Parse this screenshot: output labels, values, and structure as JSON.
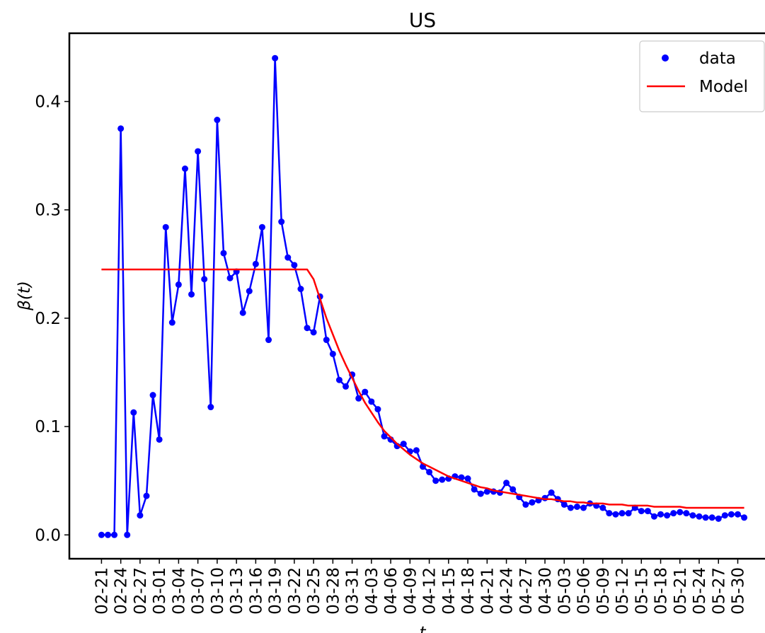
{
  "chart_data": {
    "type": "line",
    "title": "US",
    "xlabel": "t",
    "ylabel": "β(t)",
    "categories": [
      "02-21",
      null,
      null,
      "02-24",
      null,
      null,
      "02-27",
      null,
      null,
      "03-01",
      null,
      null,
      "03-04",
      null,
      null,
      "03-07",
      null,
      null,
      "03-10",
      null,
      null,
      "03-13",
      null,
      null,
      "03-16",
      null,
      null,
      "03-19",
      null,
      null,
      "03-22",
      null,
      null,
      "03-25",
      null,
      null,
      "03-28",
      null,
      null,
      "03-31",
      null,
      null,
      "04-03",
      null,
      null,
      "04-06",
      null,
      null,
      "04-09",
      null,
      null,
      "04-12",
      null,
      null,
      "04-15",
      null,
      null,
      "04-18",
      null,
      null,
      "04-21",
      null,
      null,
      "04-24",
      null,
      null,
      "04-27",
      null,
      null,
      "04-30",
      null,
      null,
      "05-03",
      null,
      null,
      "05-06",
      null,
      null,
      "05-09",
      null,
      null,
      "05-12",
      null,
      null,
      "05-15",
      null,
      null,
      "05-18",
      null,
      null,
      "05-21",
      null,
      null,
      "05-24",
      null,
      null,
      "05-27",
      null,
      null,
      "05-30",
      null
    ],
    "series": [
      {
        "name": "data",
        "color": "#0000ff",
        "marker": true,
        "values": [
          0,
          0,
          0,
          0.375,
          0,
          0.113,
          0.018,
          0.036,
          0.129,
          0.088,
          0.284,
          0.196,
          0.231,
          0.338,
          0.222,
          0.354,
          0.236,
          0.118,
          0.383,
          0.26,
          0.237,
          0.243,
          0.205,
          0.225,
          0.25,
          0.284,
          0.18,
          0.44,
          0.289,
          0.256,
          0.249,
          0.227,
          0.191,
          0.187,
          0.22,
          0.18,
          0.167,
          0.143,
          0.137,
          0.148,
          0.126,
          0.132,
          0.123,
          0.116,
          0.091,
          0.088,
          0.082,
          0.084,
          0.077,
          0.078,
          0.063,
          0.058,
          0.05,
          0.051,
          0.052,
          0.054,
          0.053,
          0.052,
          0.042,
          0.038,
          0.04,
          0.04,
          0.039,
          0.048,
          0.042,
          0.035,
          0.028,
          0.03,
          0.032,
          0.034,
          0.039,
          0.033,
          0.028,
          0.025,
          0.026,
          0.025,
          0.029,
          0.027,
          0.025,
          0.02,
          0.019,
          0.02,
          0.02,
          0.025,
          0.022,
          0.022,
          0.017,
          0.019,
          0.018,
          0.02,
          0.021,
          0.02,
          0.018,
          0.017,
          0.016,
          0.016,
          0.015,
          0.018,
          0.019,
          0.019,
          0.016
        ]
      },
      {
        "name": "Model",
        "color": "#ff0000",
        "marker": false,
        "values": [
          0.245,
          0.245,
          0.245,
          0.245,
          0.245,
          0.245,
          0.245,
          0.245,
          0.245,
          0.245,
          0.245,
          0.245,
          0.245,
          0.245,
          0.245,
          0.245,
          0.245,
          0.245,
          0.245,
          0.245,
          0.245,
          0.245,
          0.245,
          0.245,
          0.245,
          0.245,
          0.245,
          0.245,
          0.245,
          0.245,
          0.245,
          0.245,
          0.245,
          0.236,
          0.218,
          0.2,
          0.185,
          0.17,
          0.157,
          0.145,
          0.133,
          0.122,
          0.113,
          0.104,
          0.096,
          0.09,
          0.084,
          0.079,
          0.074,
          0.07,
          0.066,
          0.063,
          0.06,
          0.057,
          0.054,
          0.052,
          0.05,
          0.048,
          0.046,
          0.044,
          0.043,
          0.041,
          0.04,
          0.039,
          0.038,
          0.037,
          0.036,
          0.035,
          0.034,
          0.033,
          0.033,
          0.032,
          0.031,
          0.031,
          0.03,
          0.03,
          0.029,
          0.029,
          0.029,
          0.028,
          0.028,
          0.028,
          0.027,
          0.027,
          0.027,
          0.027,
          0.026,
          0.026,
          0.026,
          0.026,
          0.026,
          0.025,
          0.025,
          0.025,
          0.025,
          0.025,
          0.025,
          0.025,
          0.025,
          0.025,
          0.025
        ]
      }
    ],
    "ylim": [
      -0.022,
      0.463
    ],
    "yticks": [
      {
        "value": 0,
        "label": "0.0"
      },
      0.1,
      0.2,
      0.3,
      0.4
    ],
    "legend": "upper right"
  }
}
